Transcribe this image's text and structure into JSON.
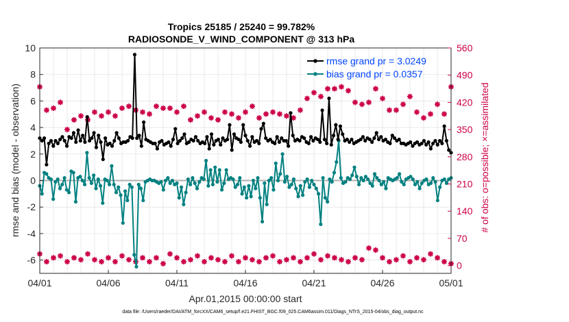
{
  "chart_data": {
    "type": "line",
    "title_line1": "Tropics 25185 / 25240 = 99.782%",
    "title_line2": "RADIOSONDE_V_WIND_COMPONENT @ 313 hPa",
    "xlabel": "Apr.01,2015 00:00:00 start",
    "ylabel_left": "rmse and bias (model - observation)",
    "ylabel_right": "# of obs: o=possible; ×=assimilated",
    "footnote": "data file: /Users/raeder/DAI/ATM_forcXX/CAM6_setup/f.e21.FHIST_BGC.f09_025.CAM6assim.011/Diags_NTrS_2015-04/obs_diag_output.nc",
    "x_tick_labels": [
      "04/01",
      "04/06",
      "04/11",
      "04/16",
      "04/21",
      "04/26",
      "05/01"
    ],
    "x_tick_days": [
      0,
      5,
      10,
      15,
      20,
      25,
      30
    ],
    "xlim_days": [
      0,
      30
    ],
    "y_left_ticks": [
      10,
      8,
      6,
      4,
      2,
      0,
      -2,
      -4,
      -6
    ],
    "ylim_left": [
      -7,
      10
    ],
    "y_right_ticks": [
      560,
      490,
      420,
      350,
      280,
      210,
      140,
      70,
      0
    ],
    "ylim_right": [
      -20,
      560
    ],
    "legend": [
      {
        "name": "rmse grand pr = 3.0249",
        "color": "#000000"
      },
      {
        "name": "bias grand pr = 0.0357",
        "color": "#008080"
      }
    ],
    "colors": {
      "rmse": "#000000",
      "bias": "#008080",
      "obs": "#cc0044",
      "zero_line": "#b0b0b0",
      "grid": "#e0e0e0"
    },
    "rmse_values": [
      3.2,
      3.0,
      3.2,
      1.2,
      2.8,
      3.0,
      2.6,
      3.0,
      2.8,
      3.1,
      3.3,
      3.0,
      2.6,
      3.3,
      3.2,
      3.6,
      2.9,
      3.8,
      3.0,
      3.4,
      2.9,
      4.8,
      3.0,
      3.2,
      3.6,
      2.5,
      3.4,
      2.9,
      1.6,
      3.2,
      2.7,
      2.8,
      2.6,
      3.0,
      3.6,
      3.2,
      2.8,
      2.9,
      2.9,
      3.0,
      3.3,
      3.2,
      9.5,
      3.2,
      3.4,
      2.6,
      4.4,
      3.1,
      3.0,
      2.9,
      2.8,
      2.8,
      2.4,
      2.9,
      3.0,
      2.7,
      2.8,
      2.9,
      2.6,
      3.1,
      3.9,
      2.8,
      3.0,
      3.2,
      3.5,
      2.8,
      2.9,
      3.1,
      3.0,
      3.3,
      3.0,
      2.8,
      2.9,
      2.8,
      3.3,
      2.4,
      3.5,
      2.7,
      3.0,
      3.1,
      2.7,
      3.2,
      3.0,
      3.1,
      4.2,
      2.3,
      3.5,
      3.2,
      3.1,
      2.9,
      4.2,
      3.4,
      3.0,
      2.6,
      3.3,
      2.9,
      3.0,
      2.8,
      3.9,
      4.3,
      3.2,
      3.0,
      3.1,
      2.9,
      2.8,
      3.3,
      2.9,
      3.2,
      3.0,
      3.0,
      2.6,
      5.1,
      3.4,
      3.0,
      3.1,
      3.0,
      3.3,
      3.2,
      2.9,
      2.8,
      3.3,
      3.0,
      3.2,
      3.1,
      2.9,
      5.3,
      3.1,
      2.8,
      6.2,
      2.7,
      3.4,
      4.2,
      3.1,
      4.1,
      3.5,
      3.0,
      3.1,
      2.9,
      3.1,
      2.8,
      2.9,
      3.0,
      3.1,
      3.3,
      3.0,
      3.2,
      3.1,
      2.9,
      3.2,
      3.6,
      3.1,
      3.3,
      3.0,
      3.1,
      2.9,
      2.8,
      3.4,
      3.2,
      3.0,
      3.1,
      2.8,
      2.8,
      2.7,
      2.8,
      2.9,
      2.6,
      2.8,
      2.9,
      2.7,
      2.8,
      3.0,
      2.7,
      2.9,
      2.4,
      2.8,
      3.0,
      2.7,
      3.0,
      2.8,
      4.1,
      3.0,
      2.3,
      2.1
    ],
    "bias_values": [
      -0.4,
      -1.0,
      0.6,
      0.5,
      0.2,
      0.1,
      -1.4,
      -0.1,
      0.1,
      -0.6,
      -0.3,
      0.2,
      -0.7,
      -0.9,
      0.7,
      0.6,
      -1.6,
      0.2,
      0.3,
      0.0,
      -0.3,
      2.1,
      0.2,
      -0.2,
      0.4,
      -0.6,
      0.1,
      -0.4,
      -1.7,
      0.1,
      0.0,
      -0.3,
      1.1,
      -0.3,
      -0.9,
      -0.5,
      -1.1,
      -3.2,
      -0.8,
      -1.5,
      -0.3,
      -0.5,
      -5.6,
      -6.5,
      -0.3,
      -0.6,
      -1.5,
      -0.1,
      0.0,
      0.1,
      0.0,
      0.0,
      -0.1,
      -0.2,
      -0.1,
      -0.7,
      0.0,
      0.2,
      -0.2,
      0.0,
      -0.3,
      -0.2,
      -1.3,
      -0.5,
      -1.8,
      -0.9,
      0.1,
      -0.3,
      0.2,
      -0.2,
      -0.6,
      -0.1,
      0.2,
      0.1,
      1.5,
      -0.4,
      0.8,
      -0.3,
      1.0,
      -0.1,
      0.8,
      -0.7,
      -0.2,
      0.8,
      0.1,
      0.2,
      0.1,
      -0.5,
      -0.3,
      0.2,
      -1.0,
      -0.5,
      -1.3,
      -0.4,
      -1.2,
      0.0,
      -0.6,
      0.2,
      -1.3,
      -3.1,
      -0.2,
      -1.8,
      0.0,
      0.2,
      -0.7,
      1.3,
      0.0,
      0.5,
      2.0,
      -0.1,
      0.3,
      -0.5,
      -0.3,
      0.1,
      -0.6,
      -1.2,
      -0.4,
      -1.1,
      -0.1,
      0.1,
      -0.5,
      0.0,
      -0.3,
      -0.6,
      -1.0,
      -3.3,
      0.2,
      -1.3,
      -1.6,
      0.1,
      -0.1,
      0.6,
      1.4,
      3.0,
      0.2,
      -0.2,
      -0.1,
      0.2,
      0.1,
      0.4,
      1.0,
      0.3,
      -0.3,
      0.2,
      0.0,
      0.3,
      0.1,
      -0.2,
      -0.4,
      0.5,
      0.2,
      0.0,
      -0.3,
      -0.1,
      -0.6,
      0.2,
      0.1,
      0.0,
      0.1,
      0.2,
      0.5,
      -0.1,
      -0.3,
      0.1,
      0.2,
      0.3,
      0.1,
      -0.3,
      -0.1,
      -0.6,
      -0.2,
      0.0,
      0.1,
      -0.3,
      -0.2,
      0.2,
      -0.1,
      -1.5,
      -0.5,
      0.0,
      0.1,
      -0.2,
      0.1,
      0.2
    ],
    "obs_possible_day": [
      0.0,
      0.5,
      1.0,
      1.5,
      2.0,
      2.5,
      3.0,
      3.5,
      4.0,
      4.5,
      5.0,
      5.5,
      6.0,
      6.5,
      7.0,
      7.5,
      8.0,
      8.5,
      9.0,
      9.5,
      10.0,
      10.5,
      11.0,
      11.5,
      12.0,
      12.5,
      13.0,
      13.5,
      14.0,
      14.5,
      15.0,
      15.5,
      16.0,
      16.5,
      17.0,
      17.5,
      18.0,
      18.5,
      19.0,
      19.5,
      20.0,
      20.5,
      21.0,
      21.5,
      22.0,
      22.5,
      23.0,
      23.5,
      24.0,
      24.5,
      25.0,
      25.5,
      26.0,
      26.5,
      27.0,
      27.5,
      28.0,
      28.5,
      29.0,
      29.5,
      30.0
    ],
    "obs_possible_val": [
      460,
      400,
      405,
      420,
      350,
      375,
      385,
      375,
      395,
      385,
      395,
      385,
      405,
      410,
      400,
      395,
      390,
      410,
      405,
      405,
      395,
      410,
      375,
      385,
      395,
      380,
      375,
      395,
      390,
      380,
      395,
      410,
      380,
      390,
      395,
      390,
      385,
      380,
      400,
      430,
      445,
      435,
      455,
      455,
      460,
      450,
      420,
      415,
      420,
      455,
      430,
      400,
      400,
      415,
      435,
      395,
      380,
      390,
      415,
      390,
      460
    ],
    "obs_assim_day": [
      0.0,
      0.5,
      1.0,
      1.5,
      2.0,
      2.5,
      3.0,
      3.5,
      4.0,
      4.5,
      5.0,
      5.5,
      6.0,
      6.5,
      7.0,
      7.5,
      8.0,
      8.5,
      9.0,
      9.5,
      10.0,
      10.5,
      11.0,
      11.5,
      12.0,
      12.5,
      13.0,
      13.5,
      14.0,
      14.5,
      15.0,
      15.5,
      16.0,
      16.5,
      17.0,
      17.5,
      18.0,
      18.5,
      19.0,
      19.5,
      20.0,
      20.5,
      21.0,
      21.5,
      22.0,
      22.5,
      23.0,
      23.5,
      24.0,
      24.5,
      25.0,
      25.5,
      26.0,
      26.5,
      27.0,
      27.5,
      28.0,
      28.5,
      29.0,
      29.5,
      30.0
    ],
    "obs_assim_val": [
      30,
      10,
      20,
      25,
      10,
      20,
      15,
      30,
      15,
      10,
      20,
      10,
      25,
      15,
      10,
      20,
      10,
      20,
      5,
      30,
      20,
      10,
      15,
      25,
      10,
      20,
      15,
      10,
      25,
      10,
      20,
      15,
      10,
      20,
      25,
      10,
      15,
      20,
      10,
      20,
      30,
      15,
      25,
      20,
      15,
      10,
      20,
      15,
      45,
      40,
      20,
      10,
      15,
      25,
      10,
      20,
      15,
      30,
      20,
      10,
      5
    ]
  }
}
